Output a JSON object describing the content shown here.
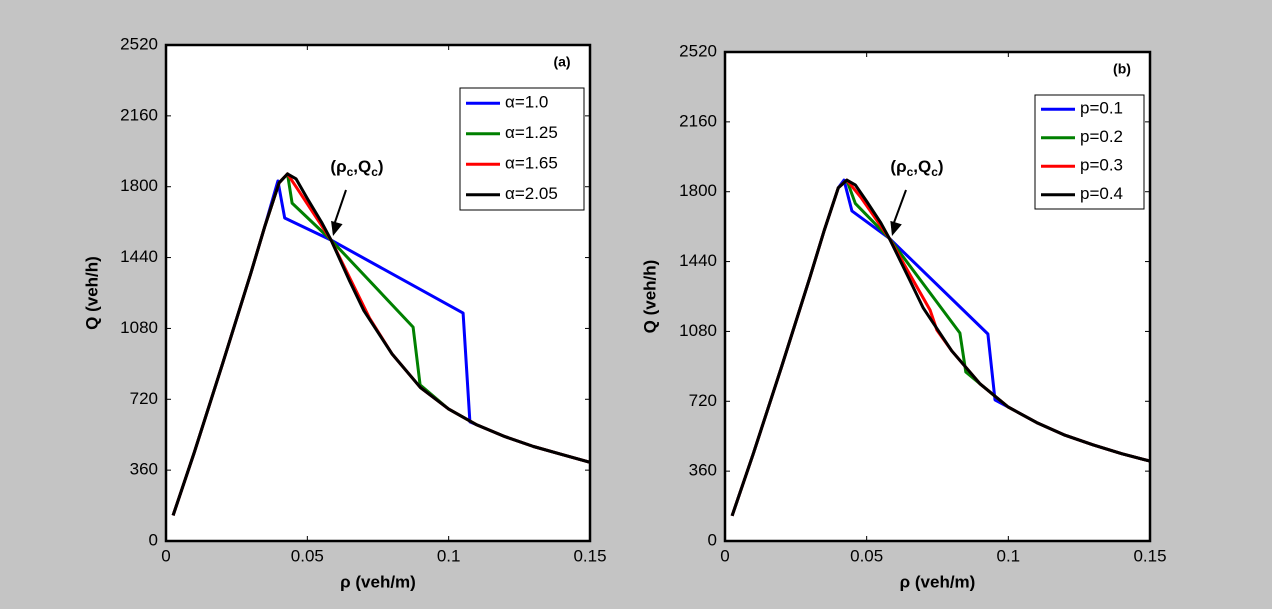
{
  "chart_data": [
    {
      "type": "line",
      "panel_label": "(a)",
      "x_label": "ρ (veh/m)",
      "y_label": "Q (veh/h)",
      "annotation": [
        "(ρ",
        "c",
        ",Q",
        "c",
        ")"
      ],
      "xlim": [
        0,
        0.15
      ],
      "ylim": [
        0,
        2520
      ],
      "xticks": [
        0,
        0.05,
        0.1,
        0.15
      ],
      "yticks": [
        0,
        360,
        720,
        1080,
        1440,
        1800,
        2160,
        2520
      ],
      "legend": "upper right",
      "series": [
        {
          "name": "α=1.0",
          "color": "#0000ff",
          "x": [
            0.0025,
            0.01,
            0.02,
            0.03,
            0.035,
            0.0396,
            0.042,
            0.0584,
            0.1051,
            0.1075,
            0.11,
            0.12,
            0.13,
            0.14,
            0.15
          ],
          "values": [
            130,
            450,
            900,
            1360,
            1600,
            1829,
            1641,
            1529,
            1158,
            605,
            590,
            530,
            480,
            440,
            400
          ]
        },
        {
          "name": "α=1.25",
          "color": "#008000",
          "x": [
            0.0025,
            0.01,
            0.02,
            0.03,
            0.035,
            0.04,
            0.043,
            0.0446,
            0.0584,
            0.0874,
            0.0899,
            0.1,
            0.11,
            0.12,
            0.13,
            0.14,
            0.15
          ],
          "values": [
            130,
            450,
            900,
            1360,
            1600,
            1820,
            1865,
            1717,
            1529,
            1087,
            793,
            670,
            590,
            530,
            480,
            440,
            400
          ]
        },
        {
          "name": "α=1.65",
          "color": "#ff0000",
          "x": [
            0.0025,
            0.01,
            0.02,
            0.03,
            0.035,
            0.04,
            0.043,
            0.046,
            0.0584,
            0.072,
            0.08,
            0.09,
            0.1,
            0.11,
            0.12,
            0.13,
            0.14,
            0.15
          ],
          "values": [
            130,
            450,
            900,
            1360,
            1600,
            1820,
            1865,
            1800,
            1529,
            1133,
            950,
            780,
            670,
            590,
            530,
            480,
            440,
            400
          ]
        },
        {
          "name": "α=2.05",
          "color": "#000000",
          "x": [
            0.0025,
            0.01,
            0.02,
            0.03,
            0.035,
            0.04,
            0.043,
            0.046,
            0.05,
            0.055,
            0.0584,
            0.065,
            0.07,
            0.08,
            0.09,
            0.1,
            0.11,
            0.12,
            0.13,
            0.14,
            0.15
          ],
          "values": [
            130,
            450,
            900,
            1360,
            1600,
            1820,
            1865,
            1840,
            1740,
            1620,
            1529,
            1320,
            1170,
            950,
            780,
            670,
            590,
            530,
            480,
            440,
            400
          ]
        }
      ]
    },
    {
      "type": "line",
      "panel_label": "(b)",
      "x_label": "ρ (veh/m)",
      "y_label": "Q (veh/h)",
      "annotation": [
        "(ρ",
        "c",
        ",Q",
        "c",
        ")"
      ],
      "xlim": [
        0,
        0.15
      ],
      "ylim": [
        0,
        2520
      ],
      "xticks": [
        0,
        0.05,
        0.1,
        0.15
      ],
      "yticks": [
        0,
        360,
        720,
        1080,
        1440,
        1800,
        2160,
        2520
      ],
      "legend": "upper right",
      "series": [
        {
          "name": "p=0.1",
          "color": "#0000ff",
          "x": [
            0.0025,
            0.01,
            0.02,
            0.03,
            0.035,
            0.04,
            0.042,
            0.0448,
            0.058,
            0.0928,
            0.0953,
            0.1,
            0.11,
            0.12,
            0.13,
            0.14,
            0.15
          ],
          "values": [
            130,
            450,
            900,
            1360,
            1600,
            1820,
            1860,
            1701,
            1560,
            1067,
            727,
            690,
            610,
            545,
            495,
            450,
            412
          ]
        },
        {
          "name": "p=0.2",
          "color": "#008000",
          "x": [
            0.0025,
            0.01,
            0.02,
            0.03,
            0.035,
            0.04,
            0.043,
            0.046,
            0.058,
            0.0829,
            0.085,
            0.09,
            0.1,
            0.11,
            0.12,
            0.13,
            0.14,
            0.15
          ],
          "values": [
            130,
            450,
            900,
            1360,
            1600,
            1820,
            1860,
            1740,
            1560,
            1072,
            871,
            810,
            690,
            610,
            545,
            495,
            450,
            412
          ]
        },
        {
          "name": "p=0.3",
          "color": "#ff0000",
          "x": [
            0.0025,
            0.01,
            0.02,
            0.03,
            0.035,
            0.04,
            0.043,
            0.048,
            0.058,
            0.0724,
            0.0748,
            0.08,
            0.09,
            0.1,
            0.11,
            0.12,
            0.13,
            0.14,
            0.15
          ],
          "values": [
            130,
            450,
            900,
            1360,
            1600,
            1820,
            1860,
            1770,
            1560,
            1190,
            1087,
            980,
            810,
            690,
            610,
            545,
            495,
            450,
            412
          ]
        },
        {
          "name": "p=0.4",
          "color": "#000000",
          "x": [
            0.0025,
            0.01,
            0.02,
            0.03,
            0.035,
            0.04,
            0.043,
            0.046,
            0.05,
            0.055,
            0.058,
            0.065,
            0.07,
            0.08,
            0.09,
            0.1,
            0.11,
            0.12,
            0.13,
            0.14,
            0.15
          ],
          "values": [
            130,
            450,
            900,
            1360,
            1600,
            1820,
            1860,
            1835,
            1750,
            1640,
            1560,
            1350,
            1200,
            980,
            810,
            690,
            610,
            545,
            495,
            450,
            412
          ]
        }
      ]
    }
  ]
}
